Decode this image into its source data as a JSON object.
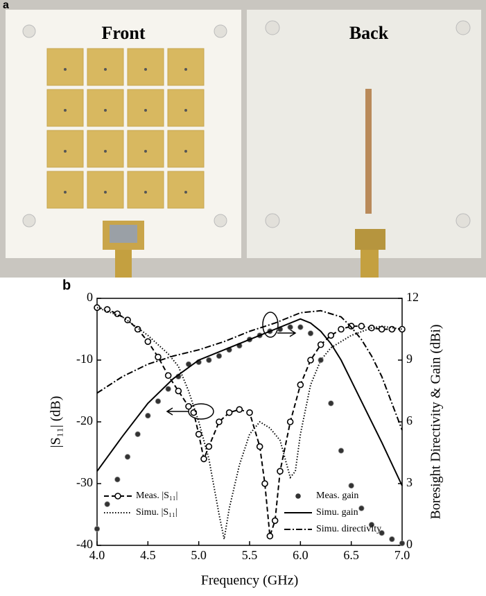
{
  "photo": {
    "label": "a",
    "front": "Front",
    "back": "Back"
  },
  "chart_data": {
    "type": "line",
    "panel_label": "b",
    "x_label": "Frequency (GHz)",
    "y_label": "|S₁₁| (dB)",
    "y2_label": "Boresight Directivity & Gain (dBi)",
    "xlim": [
      4.0,
      7.0
    ],
    "xticks": [
      {
        "value": 4,
        "label": "4.0"
      },
      {
        "value": 4.5,
        "label": "4.5"
      },
      {
        "value": 5,
        "label": "5.0"
      },
      {
        "value": 5.5,
        "label": "5.5"
      },
      {
        "value": 6,
        "label": "6.0"
      },
      {
        "value": 6.5,
        "label": "6.5"
      },
      {
        "value": 7,
        "label": "7.0"
      }
    ],
    "ylim": [
      -40,
      0
    ],
    "yticks": [
      0,
      -10,
      -20,
      -30,
      -40
    ],
    "y2lim": [
      0,
      12
    ],
    "y2ticks": [
      0,
      3,
      6,
      9,
      12
    ],
    "series": [
      {
        "name": "Meas. |S₁₁|",
        "color": "#000000",
        "style": "dash-circles",
        "legend": "lower left",
        "x": [
          4.0,
          4.1,
          4.2,
          4.3,
          4.4,
          4.5,
          4.6,
          4.7,
          4.8,
          4.9,
          4.95,
          5.0,
          5.05,
          5.1,
          5.2,
          5.3,
          5.4,
          5.5,
          5.6,
          5.65,
          5.7,
          5.75,
          5.8,
          5.9,
          6.0,
          6.1,
          6.2,
          6.3,
          6.4,
          6.5,
          6.6,
          6.7,
          6.8,
          6.9,
          7.0
        ],
        "values": [
          -1.5,
          -1.8,
          -2.5,
          -3.5,
          -5,
          -7,
          -9.5,
          -12.5,
          -15,
          -17.5,
          -18.5,
          -22,
          -26,
          -24,
          -20,
          -18.5,
          -18,
          -18.5,
          -24,
          -30,
          -38.5,
          -36,
          -28,
          -20,
          -14,
          -10,
          -7.5,
          -6,
          -5,
          -4.5,
          -4.5,
          -4.8,
          -5,
          -5,
          -5
        ]
      },
      {
        "name": "Simu. |S₁₁|",
        "color": "#000000",
        "style": "dot",
        "legend": "lower left",
        "x": [
          4.0,
          4.25,
          4.5,
          4.7,
          4.8,
          4.9,
          5.0,
          5.1,
          5.2,
          5.25,
          5.3,
          5.4,
          5.5,
          5.6,
          5.7,
          5.8,
          5.85,
          5.9,
          5.95,
          6.0,
          6.1,
          6.2,
          6.3,
          6.5,
          6.7,
          6.8,
          7.0
        ],
        "values": [
          -1.5,
          -3,
          -6,
          -9,
          -11,
          -15,
          -20,
          -26,
          -35,
          -39,
          -34,
          -27,
          -22,
          -20,
          -21,
          -23,
          -26,
          -29,
          -28,
          -22,
          -14,
          -10,
          -8,
          -6,
          -4.8,
          -4.5,
          -5
        ]
      },
      {
        "name": "Meas. gain",
        "color": "#333333",
        "style": "dots",
        "axis": "y2",
        "legend": "lower right",
        "x": [
          4.0,
          4.1,
          4.2,
          4.3,
          4.4,
          4.5,
          4.6,
          4.7,
          4.8,
          4.9,
          5.0,
          5.1,
          5.2,
          5.3,
          5.4,
          5.5,
          5.6,
          5.7,
          5.8,
          5.9,
          6.0,
          6.1,
          6.2,
          6.3,
          6.4,
          6.5,
          6.6,
          6.7,
          6.8,
          6.9,
          7.0
        ],
        "values": [
          0.8,
          2.0,
          3.2,
          4.3,
          5.4,
          6.3,
          7.0,
          7.6,
          8.2,
          8.8,
          8.9,
          9.0,
          9.2,
          9.5,
          9.7,
          10.0,
          10.2,
          10.4,
          10.5,
          10.6,
          10.6,
          10.3,
          9.0,
          6.9,
          4.6,
          2.9,
          1.8,
          1.0,
          0.6,
          0.3,
          0.1
        ]
      },
      {
        "name": "Simu. gain",
        "color": "#000000",
        "style": "solid",
        "axis": "y2",
        "legend": "lower right",
        "x": [
          4.0,
          4.25,
          4.5,
          4.75,
          5.0,
          5.25,
          5.5,
          5.75,
          6.0,
          6.1,
          6.2,
          6.3,
          6.4,
          6.5,
          6.6,
          6.8,
          7.0
        ],
        "values": [
          3.6,
          5.3,
          6.9,
          8.1,
          9.0,
          9.5,
          10.0,
          10.5,
          11.0,
          10.8,
          10.4,
          9.8,
          9.0,
          8.0,
          7.0,
          5.0,
          2.9
        ]
      },
      {
        "name": "Simu. directivity",
        "color": "#000000",
        "style": "dashdot",
        "axis": "y2",
        "legend": "lower right",
        "x": [
          4.0,
          4.25,
          4.5,
          4.75,
          5.0,
          5.25,
          5.5,
          5.75,
          6.0,
          6.2,
          6.4,
          6.5,
          6.6,
          6.7,
          6.8,
          6.9,
          7.0
        ],
        "values": [
          7.4,
          8.2,
          8.8,
          9.2,
          9.5,
          9.9,
          10.4,
          10.8,
          11.3,
          11.4,
          11.1,
          10.6,
          10.0,
          9.2,
          8.2,
          6.9,
          5.6
        ]
      }
    ]
  }
}
